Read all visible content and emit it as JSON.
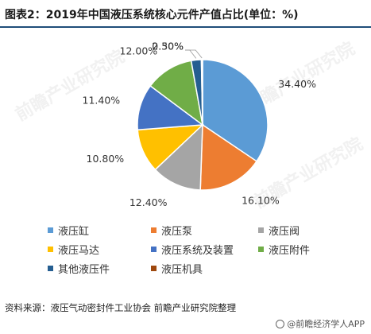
{
  "title": "图表2：2019年中国液压系统核心元件产值占比(单位：%)",
  "source": "资料来源：液压气动密封件工业协会 前瞻产业研究院整理",
  "watermark": "@前瞻经济学人APP",
  "bg_watermark": "前瞻产业研究院",
  "chart_data": {
    "type": "pie",
    "title": "图表2：2019年中国液压系统核心元件产值占比(单位：%)",
    "unit": "%",
    "start_angle_deg": 0,
    "direction": "clockwise",
    "legend_position": "bottom",
    "slices": [
      {
        "name": "液压缸",
        "value": 34.4,
        "label": "34.40%",
        "color": "#5b9bd5"
      },
      {
        "name": "液压泵",
        "value": 16.1,
        "label": "16.10%",
        "color": "#ed7d31"
      },
      {
        "name": "液压阀",
        "value": 12.4,
        "label": "12.40%",
        "color": "#a5a5a5"
      },
      {
        "name": "液压马达",
        "value": 10.8,
        "label": "10.80%",
        "color": "#ffc000"
      },
      {
        "name": "液压系统及装置",
        "value": 11.4,
        "label": "11.40%",
        "color": "#4472c4"
      },
      {
        "name": "液压附件",
        "value": 12.0,
        "label": "12.00%",
        "color": "#70ad47"
      },
      {
        "name": "其他液压件",
        "value": 2.5,
        "label": "2.50%",
        "color": "#255e91"
      },
      {
        "name": "液压机具",
        "value": 0.3,
        "label": "0.30%",
        "color": "#9e480e"
      }
    ]
  }
}
